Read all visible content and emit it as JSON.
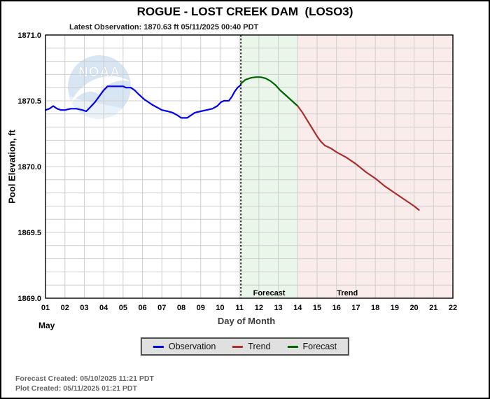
{
  "chart_data": {
    "type": "line",
    "title": "ROGUE - LOST CREEK DAM  (LOSO3)",
    "subtitle": "Latest Observation: 1870.63 ft 05/11/2025 00:40 PDT",
    "xlabel": "Day of Month",
    "ylabel": "Pool Elevation, ft",
    "month_label": "May",
    "xlim": [
      1,
      22
    ],
    "ylim": [
      1869.0,
      1871.0
    ],
    "x_ticks": [
      "01",
      "02",
      "03",
      "04",
      "05",
      "06",
      "07",
      "08",
      "09",
      "10",
      "11",
      "12",
      "13",
      "14",
      "15",
      "16",
      "17",
      "18",
      "19",
      "20",
      "21",
      "22"
    ],
    "y_ticks": [
      {
        "label": "1871.0",
        "value": 1871.0
      },
      {
        "label": "1870.5",
        "value": 1870.5
      },
      {
        "label": "1870.0",
        "value": 1870.0
      },
      {
        "label": "1869.5",
        "value": 1869.5
      },
      {
        "label": "1869.0",
        "value": 1869.0
      }
    ],
    "minor_y_step": 0.1,
    "grid": true,
    "grid_color": "#cdcdcd",
    "now_line_x": 11.07,
    "regions": [
      {
        "label": "Forecast",
        "x_start": 11.07,
        "x_end": 14.0,
        "label_x": 12.53,
        "color": "#ebf6eb"
      },
      {
        "label": "Trend",
        "x_start": 14.0,
        "x_end": 22.0,
        "label_x": 16.56,
        "color": "#fbecec"
      }
    ],
    "series": [
      {
        "name": "Observation",
        "color": "#0000ee",
        "points": [
          [
            1.0,
            1870.43
          ],
          [
            1.2,
            1870.44
          ],
          [
            1.4,
            1870.46
          ],
          [
            1.6,
            1870.44
          ],
          [
            1.8,
            1870.43
          ],
          [
            2.0,
            1870.43
          ],
          [
            2.3,
            1870.44
          ],
          [
            2.6,
            1870.44
          ],
          [
            2.9,
            1870.43
          ],
          [
            3.1,
            1870.42
          ],
          [
            3.3,
            1870.45
          ],
          [
            3.55,
            1870.49
          ],
          [
            3.8,
            1870.54
          ],
          [
            4.0,
            1870.58
          ],
          [
            4.2,
            1870.61
          ],
          [
            4.5,
            1870.61
          ],
          [
            4.75,
            1870.61
          ],
          [
            5.0,
            1870.61
          ],
          [
            5.15,
            1870.6
          ],
          [
            5.4,
            1870.6
          ],
          [
            5.6,
            1870.58
          ],
          [
            5.8,
            1870.55
          ],
          [
            5.95,
            1870.53
          ],
          [
            6.1,
            1870.51
          ],
          [
            6.3,
            1870.49
          ],
          [
            6.5,
            1870.47
          ],
          [
            6.75,
            1870.45
          ],
          [
            7.0,
            1870.43
          ],
          [
            7.3,
            1870.42
          ],
          [
            7.55,
            1870.41
          ],
          [
            7.8,
            1870.39
          ],
          [
            8.0,
            1870.37
          ],
          [
            8.3,
            1870.37
          ],
          [
            8.5,
            1870.39
          ],
          [
            8.7,
            1870.41
          ],
          [
            9.0,
            1870.42
          ],
          [
            9.3,
            1870.43
          ],
          [
            9.6,
            1870.44
          ],
          [
            9.85,
            1870.46
          ],
          [
            10.05,
            1870.49
          ],
          [
            10.2,
            1870.5
          ],
          [
            10.45,
            1870.5
          ],
          [
            10.6,
            1870.53
          ],
          [
            10.75,
            1870.57
          ],
          [
            10.9,
            1870.6
          ],
          [
            11.07,
            1870.62
          ]
        ]
      },
      {
        "name": "Forecast",
        "color": "#006400",
        "points": [
          [
            11.07,
            1870.63
          ],
          [
            11.3,
            1870.66
          ],
          [
            11.6,
            1870.675
          ],
          [
            11.85,
            1870.68
          ],
          [
            12.1,
            1870.68
          ],
          [
            12.35,
            1870.67
          ],
          [
            12.6,
            1870.65
          ],
          [
            12.85,
            1870.62
          ],
          [
            13.1,
            1870.58
          ],
          [
            13.4,
            1870.54
          ],
          [
            13.7,
            1870.5
          ],
          [
            14.0,
            1870.46
          ]
        ]
      },
      {
        "name": "Trend",
        "color": "#aa2e2e",
        "points": [
          [
            14.0,
            1870.46
          ],
          [
            14.25,
            1870.41
          ],
          [
            14.5,
            1870.35
          ],
          [
            14.75,
            1870.29
          ],
          [
            15.0,
            1870.23
          ],
          [
            15.2,
            1870.19
          ],
          [
            15.4,
            1870.16
          ],
          [
            15.7,
            1870.14
          ],
          [
            16.0,
            1870.11
          ],
          [
            16.5,
            1870.07
          ],
          [
            17.0,
            1870.02
          ],
          [
            17.5,
            1869.96
          ],
          [
            18.0,
            1869.91
          ],
          [
            18.5,
            1869.85
          ],
          [
            19.0,
            1869.8
          ],
          [
            19.5,
            1869.75
          ],
          [
            20.0,
            1869.7
          ],
          [
            20.25,
            1869.67
          ]
        ]
      }
    ]
  },
  "legend": {
    "items": [
      {
        "label": "Observation",
        "color": "#0000ee"
      },
      {
        "label": "Trend",
        "color": "#aa2e2e"
      },
      {
        "label": "Forecast",
        "color": "#006400"
      }
    ]
  },
  "watermark": {
    "text": "NOAA"
  },
  "footer": {
    "line1": "Forecast Created: 05/10/2025 11:21 PDT",
    "line2": "Plot Created: 05/11/2025 01:21 PDT"
  }
}
